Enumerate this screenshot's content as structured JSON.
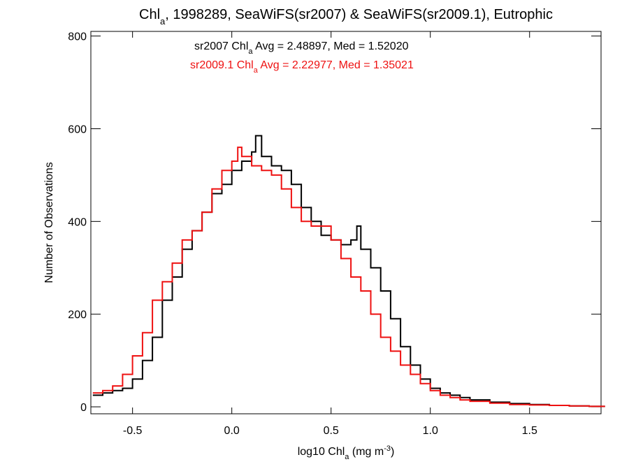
{
  "chart_data": {
    "type": "line",
    "title": {
      "prefix": "Chl",
      "sub": "a",
      "suffix": ", 1998289, SeaWiFS(sr2007) & SeaWiFS(sr2009.1), Eutrophic"
    },
    "xlabel": {
      "prefix": "log10 Chl",
      "sub": "a",
      "middle": " (mg m",
      "sup": "-3",
      "suffix": ")"
    },
    "ylabel": "Number of Observations",
    "xlim": [
      -0.71,
      1.86
    ],
    "ylim": [
      -15,
      810
    ],
    "xticks": [
      -0.5,
      0.0,
      0.5,
      1.0,
      1.5
    ],
    "xtick_labels": [
      "-0.5",
      "0.0",
      "0.5",
      "1.0",
      "1.5"
    ],
    "yticks": [
      0,
      200,
      400,
      600,
      800
    ],
    "ytick_labels": [
      "0",
      "200",
      "400",
      "600",
      "800"
    ],
    "grid": false,
    "annotations": [
      {
        "color": "#000000",
        "prefix": "sr2007 Chl",
        "sub": "a",
        "suffix": " Avg = 2.48897, Med = 1.52020"
      },
      {
        "color": "#ee1111",
        "prefix": "sr2009.1 Chl",
        "sub": "a",
        "suffix": " Avg = 2.22977, Med = 1.35021"
      }
    ],
    "series": [
      {
        "color": "#000000",
        "x": [
          -0.7,
          -0.65,
          -0.6,
          -0.55,
          -0.5,
          -0.45,
          -0.4,
          -0.35,
          -0.3,
          -0.25,
          -0.2,
          -0.15,
          -0.1,
          -0.05,
          0.0,
          0.05,
          0.1,
          0.12,
          0.15,
          0.2,
          0.25,
          0.3,
          0.35,
          0.4,
          0.45,
          0.5,
          0.55,
          0.6,
          0.63,
          0.65,
          0.7,
          0.75,
          0.8,
          0.85,
          0.9,
          0.95,
          1.0,
          1.05,
          1.1,
          1.15,
          1.2,
          1.3,
          1.4,
          1.5,
          1.6,
          1.7,
          1.8,
          1.85
        ],
        "y": [
          25,
          30,
          35,
          40,
          60,
          100,
          150,
          230,
          280,
          340,
          380,
          420,
          460,
          480,
          510,
          530,
          550,
          585,
          540,
          520,
          510,
          480,
          430,
          400,
          370,
          360,
          350,
          360,
          390,
          340,
          300,
          250,
          190,
          130,
          90,
          60,
          40,
          30,
          25,
          20,
          15,
          10,
          7,
          5,
          3,
          2,
          1,
          1
        ]
      },
      {
        "color": "#ee1111",
        "x": [
          -0.7,
          -0.65,
          -0.6,
          -0.55,
          -0.5,
          -0.45,
          -0.4,
          -0.35,
          -0.3,
          -0.25,
          -0.2,
          -0.15,
          -0.1,
          -0.05,
          0.0,
          0.03,
          0.05,
          0.1,
          0.15,
          0.2,
          0.25,
          0.3,
          0.35,
          0.4,
          0.45,
          0.5,
          0.55,
          0.6,
          0.65,
          0.7,
          0.75,
          0.8,
          0.85,
          0.9,
          0.95,
          1.0,
          1.05,
          1.1,
          1.15,
          1.2,
          1.3,
          1.4,
          1.5,
          1.6,
          1.7,
          1.8,
          1.85
        ],
        "y": [
          30,
          35,
          45,
          70,
          110,
          160,
          230,
          270,
          310,
          360,
          380,
          420,
          470,
          510,
          530,
          560,
          540,
          520,
          510,
          500,
          470,
          430,
          400,
          390,
          390,
          360,
          320,
          280,
          250,
          200,
          150,
          120,
          90,
          70,
          50,
          35,
          25,
          20,
          15,
          12,
          8,
          5,
          4,
          3,
          2,
          1,
          1
        ]
      }
    ]
  }
}
